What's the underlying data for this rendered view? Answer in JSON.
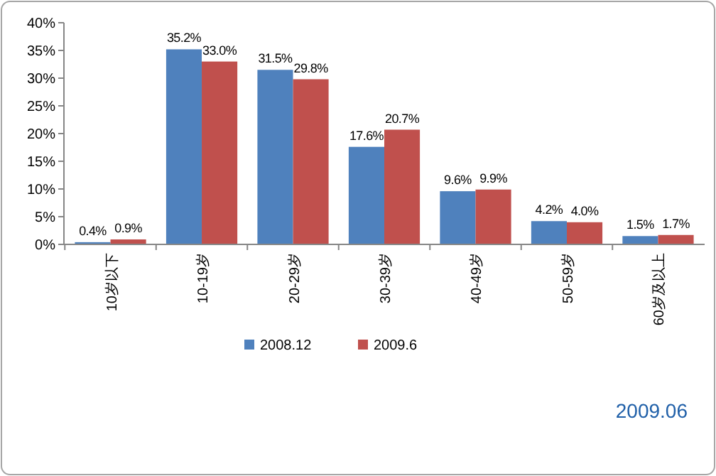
{
  "chart_data": {
    "type": "bar",
    "categories": [
      "10岁以下",
      "10-19岁",
      "20-29岁",
      "30-39岁",
      "40-49岁",
      "50-59岁",
      "60岁及以上"
    ],
    "series": [
      {
        "name": "2008.12",
        "color": "#4f81bd",
        "values": [
          0.4,
          35.2,
          31.5,
          17.6,
          9.6,
          4.2,
          1.5
        ],
        "value_labels": [
          "0.4%",
          "35.2%",
          "31.5%",
          "17.6%",
          "9.6%",
          "4.2%",
          "1.5%"
        ]
      },
      {
        "name": "2009.6",
        "color": "#c0504d",
        "values": [
          0.9,
          33.0,
          29.8,
          20.7,
          9.9,
          4.0,
          1.7
        ],
        "value_labels": [
          "0.9%",
          "33.0%",
          "29.8%",
          "20.7%",
          "9.9%",
          "4.0%",
          "1.7%"
        ]
      }
    ],
    "ylim": [
      0,
      40
    ],
    "yticks": [
      {
        "value": 0,
        "label": "0%"
      },
      {
        "value": 5,
        "label": "5%"
      },
      {
        "value": 10,
        "label": "10%"
      },
      {
        "value": 15,
        "label": "15%"
      },
      {
        "value": 20,
        "label": "20%"
      },
      {
        "value": 25,
        "label": "25%"
      },
      {
        "value": 30,
        "label": "30%"
      },
      {
        "value": 35,
        "label": "35%"
      },
      {
        "value": 40,
        "label": "40%"
      }
    ],
    "legend": "bottom",
    "grid": false,
    "annotations": [
      "2009.06"
    ]
  }
}
